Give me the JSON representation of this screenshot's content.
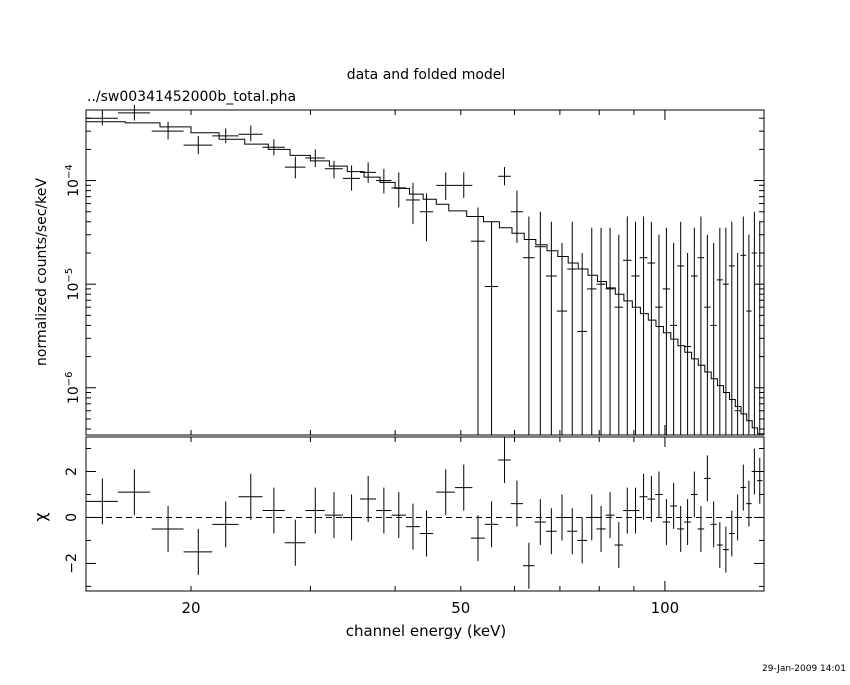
{
  "header": {
    "title": "data and folded model",
    "filename": "../sw00341452000b_total.pha"
  },
  "footer": {
    "timestamp": "29-Jan-2009 14:01"
  },
  "chart_data": [
    {
      "panel": "top",
      "type": "line",
      "xlabel": "",
      "ylabel": "normalized counts/sec/keV",
      "xscale": "log",
      "yscale": "log",
      "xlim": [
        14,
        140
      ],
      "ylim": [
        3.5e-07,
        0.00048
      ],
      "yticks": [
        {
          "value": 0.0001,
          "mantissa": "10",
          "exp": "−4"
        },
        {
          "value": 1e-05,
          "mantissa": "10",
          "exp": "−5"
        },
        {
          "value": 1e-06,
          "mantissa": "10",
          "exp": "−6"
        }
      ],
      "series": [
        {
          "kind": "data",
          "x": [
            14.8,
            16.5,
            18.5,
            20.5,
            22.5,
            24.5,
            26.5,
            28.5,
            30.5,
            32.5,
            34.5,
            36.5,
            38.5,
            40.5,
            42.5,
            44.5,
            47.5,
            50.5,
            53.0,
            55.5,
            58.0,
            60.5,
            63.0,
            65.5,
            68.0,
            70.5,
            73.0,
            75.5,
            78.0,
            80.5,
            83.0,
            85.5,
            88.0,
            90.5,
            93.0,
            95.5,
            98.0,
            100.5,
            103.0,
            105.5,
            108.0,
            110.5,
            113.0,
            115.5,
            118.0,
            120.5,
            123.0,
            125.5,
            128.0,
            130.5,
            133.0,
            135.5,
            138.0
          ],
          "xerr": [
            0.8,
            0.9,
            1.0,
            1.0,
            1.0,
            1.0,
            1.0,
            1.0,
            1.0,
            1.0,
            1.0,
            1.0,
            1.0,
            1.0,
            1.0,
            1.0,
            1.5,
            1.5,
            1.25,
            1.25,
            1.25,
            1.25,
            1.25,
            1.25,
            1.25,
            1.25,
            1.25,
            1.25,
            1.25,
            1.25,
            1.25,
            1.25,
            1.25,
            1.25,
            1.25,
            1.25,
            1.25,
            1.25,
            1.25,
            1.25,
            1.25,
            1.25,
            1.25,
            1.25,
            1.25,
            1.25,
            1.25,
            1.25,
            1.25,
            1.25,
            1.25,
            1.25,
            1.25
          ],
          "y": [
            0.0004,
            0.00045,
            0.0003,
            0.00022,
            0.00027,
            0.00028,
            0.00021,
            0.000135,
            0.000165,
            0.00013,
            0.000105,
            0.00012,
            0.0001,
            8.5e-05,
            6.5e-05,
            5e-05,
            9e-05,
            9e-05,
            2.6e-05,
            9.5e-06,
            0.00011,
            5e-05,
            1.8e-05,
            2.3e-05,
            1.2e-05,
            5.5e-06,
            1.4e-05,
            3.5e-06,
            9e-06,
            1e-05,
            9e-06,
            6e-06,
            1.7e-05,
            1.2e-05,
            1.8e-05,
            1.6e-05,
            6e-06,
            9e-06,
            4e-06,
            1.5e-05,
            2.5e-06,
            1.2e-05,
            1.8e-05,
            6e-06,
            4e-06,
            1.1e-05,
            1e-05,
            1.5e-05,
            6e-07,
            1.9e-05,
            5.5e-06,
            2e-05,
            1.5e-05
          ],
          "ylo": [
            0.00034,
            0.00038,
            0.00025,
            0.00018,
            0.00023,
            0.00024,
            0.000175,
            0.000105,
            0.000135,
            0.000105,
            8e-05,
            9.5e-05,
            7.5e-05,
            5.5e-05,
            3.8e-05,
            2.6e-05,
            6.5e-05,
            6.8e-05,
            3.5e-07,
            3.5e-07,
            9e-05,
            2.5e-05,
            3.5e-07,
            3.5e-07,
            3.5e-07,
            3.5e-07,
            3.5e-07,
            3.5e-07,
            3.5e-07,
            3.5e-07,
            3.5e-07,
            3.5e-07,
            3.5e-07,
            3.5e-07,
            3.5e-07,
            3.5e-07,
            3.5e-07,
            3.5e-07,
            3.5e-07,
            3.5e-07,
            3.5e-07,
            3.5e-07,
            3.5e-07,
            3.5e-07,
            3.5e-07,
            3.5e-07,
            3.5e-07,
            3.5e-07,
            3.5e-07,
            3.5e-07,
            3.5e-07,
            3.5e-07,
            3.5e-07
          ],
          "yhi": [
            0.00048,
            0.00054,
            0.00037,
            0.00027,
            0.00032,
            0.00034,
            0.00025,
            0.00017,
            0.0002,
            0.000155,
            0.00014,
            0.00015,
            0.00013,
            0.00012,
            9.5e-05,
            7.5e-05,
            0.00012,
            0.00012,
            5.5e-05,
            4e-05,
            0.000135,
            8e-05,
            4.5e-05,
            5e-05,
            4e-05,
            2.5e-05,
            4e-05,
            2e-05,
            3.5e-05,
            3.5e-05,
            3.5e-05,
            3e-05,
            4.5e-05,
            4e-05,
            4.5e-05,
            4e-05,
            3e-05,
            3.5e-05,
            2.5e-05,
            4e-05,
            2e-05,
            3.5e-05,
            4.5e-05,
            3e-05,
            2.5e-05,
            3.5e-05,
            3.5e-05,
            4e-05,
            2e-05,
            4.5e-05,
            3e-05,
            5e-05,
            4e-05
          ]
        },
        {
          "kind": "model-step",
          "edges": [
            14.0,
            16.0,
            18.0,
            20.0,
            22.0,
            24.0,
            26.0,
            28.0,
            30.0,
            32.0,
            34.0,
            36.0,
            38.0,
            40.0,
            42.0,
            44.0,
            46.0,
            48.0,
            51.0,
            54.0,
            57.0,
            59.5,
            62.0,
            64.5,
            67.0,
            69.5,
            72.0,
            74.5,
            77.0,
            79.5,
            82.0,
            84.5,
            87.0,
            89.5,
            92.0,
            94.5,
            97.0,
            99.5,
            102.0,
            104.5,
            107.0,
            109.5,
            112.0,
            114.5,
            117.0,
            119.5,
            122.0,
            124.5,
            127.0,
            129.5,
            132.0,
            134.5,
            137.0,
            140.0
          ],
          "values": [
            0.00037,
            0.00036,
            0.00033,
            0.00029,
            0.00025,
            0.000225,
            0.0002,
            0.000175,
            0.000155,
            0.000138,
            0.000122,
            0.000108,
            9.6e-05,
            8.4e-05,
            7.4e-05,
            6.6e-05,
            5.9e-05,
            5.1e-05,
            4.5e-05,
            4e-05,
            3.5e-05,
            3.1e-05,
            2.7e-05,
            2.4e-05,
            2.1e-05,
            1.85e-05,
            1.6e-05,
            1.4e-05,
            1.22e-05,
            1.06e-05,
            9.2e-06,
            8e-06,
            6.9e-06,
            6e-06,
            5.2e-06,
            4.5e-06,
            3.9e-06,
            3.4e-06,
            2.95e-06,
            2.55e-06,
            2.2e-06,
            1.9e-06,
            1.65e-06,
            1.42e-06,
            1.22e-06,
            1.05e-06,
            9e-07,
            7.7e-07,
            6.6e-07,
            5.6e-07,
            4.8e-07,
            4.1e-07,
            3.6e-07
          ]
        }
      ]
    },
    {
      "panel": "bottom",
      "type": "scatter",
      "xlabel": "channel energy (keV)",
      "ylabel": "χ",
      "xscale": "log",
      "yscale": "linear",
      "xlim": [
        14,
        140
      ],
      "ylim": [
        -3.2,
        3.5
      ],
      "xticks": [
        20,
        50,
        100
      ],
      "yticks": [
        2,
        0,
        -2
      ],
      "zero_line": "dashed",
      "series": [
        {
          "kind": "residuals",
          "x": [
            14.8,
            16.5,
            18.5,
            20.5,
            22.5,
            24.5,
            26.5,
            28.5,
            30.5,
            32.5,
            34.5,
            36.5,
            38.5,
            40.5,
            42.5,
            44.5,
            47.5,
            50.5,
            53.0,
            55.5,
            58.0,
            60.5,
            63.0,
            65.5,
            68.0,
            70.5,
            73.0,
            75.5,
            78.0,
            80.5,
            83.0,
            85.5,
            88.0,
            90.5,
            93.0,
            95.5,
            98.0,
            100.5,
            103.0,
            105.5,
            108.0,
            110.5,
            113.0,
            115.5,
            118.0,
            120.5,
            123.0,
            125.5,
            128.0,
            130.5,
            133.0,
            135.5,
            138.0
          ],
          "xerr": [
            0.8,
            0.9,
            1.0,
            1.0,
            1.0,
            1.0,
            1.0,
            1.0,
            1.0,
            1.0,
            1.0,
            1.0,
            1.0,
            1.0,
            1.0,
            1.0,
            1.5,
            1.5,
            1.25,
            1.25,
            1.25,
            1.25,
            1.25,
            1.25,
            1.25,
            1.25,
            1.25,
            1.25,
            1.25,
            1.25,
            1.25,
            1.25,
            1.25,
            1.25,
            1.25,
            1.25,
            1.25,
            1.25,
            1.25,
            1.25,
            1.25,
            1.25,
            1.25,
            1.25,
            1.25,
            1.25,
            1.25,
            1.25,
            1.25,
            1.25,
            1.25,
            1.25,
            1.25
          ],
          "y": [
            0.7,
            1.1,
            -0.5,
            -1.5,
            -0.3,
            0.9,
            0.3,
            -1.1,
            0.3,
            0.1,
            0.0,
            0.8,
            0.3,
            0.1,
            -0.4,
            -0.7,
            1.1,
            1.3,
            -0.9,
            -0.3,
            2.5,
            0.6,
            -2.1,
            -0.2,
            -0.6,
            0.0,
            -0.6,
            -1.0,
            0.0,
            -0.5,
            0.1,
            -1.2,
            0.3,
            0.3,
            0.9,
            0.8,
            1.0,
            -0.2,
            0.5,
            -0.5,
            -0.2,
            1.0,
            -0.5,
            1.7,
            -0.3,
            -1.2,
            -1.4,
            -0.7,
            0.0,
            1.3,
            0.6,
            2.0,
            1.6
          ],
          "yerr": [
            1.0,
            1.0,
            1.0,
            1.0,
            1.0,
            1.0,
            1.0,
            1.0,
            1.0,
            1.0,
            1.0,
            1.0,
            1.0,
            1.0,
            1.0,
            1.0,
            1.0,
            1.0,
            1.0,
            1.0,
            1.0,
            1.0,
            1.0,
            1.0,
            1.0,
            1.0,
            1.0,
            1.0,
            1.0,
            1.0,
            1.0,
            1.0,
            1.0,
            1.0,
            1.0,
            1.0,
            1.0,
            1.0,
            1.0,
            1.0,
            1.0,
            1.0,
            1.0,
            1.0,
            1.0,
            1.0,
            1.0,
            1.0,
            1.0,
            1.0,
            1.0,
            1.0,
            1.0
          ]
        }
      ]
    }
  ]
}
